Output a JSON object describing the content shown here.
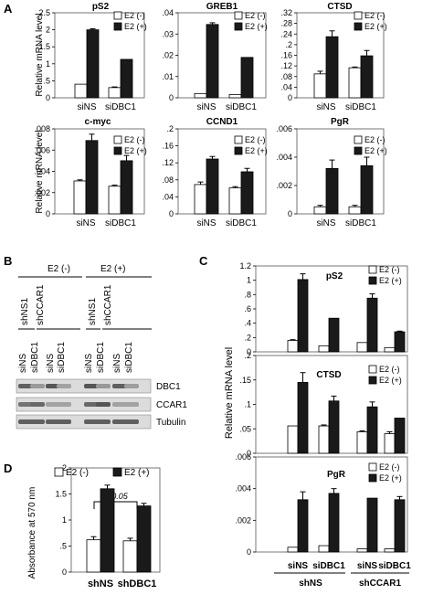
{
  "panel_letters": {
    "A": "A",
    "B": "B",
    "C": "C",
    "D": "D"
  },
  "legend": {
    "minus": "E2 (-)",
    "plus": "E2 (+)"
  },
  "panel_a": {
    "ylabel": "Relative mRNA level"
  },
  "panel_b": {
    "groups": [
      "E2 (-)",
      "E2 (+)"
    ],
    "sh_labels": [
      "shNS1",
      "shCCAR1",
      "shNS1",
      "shCCAR1"
    ],
    "si_labels": [
      "siNS",
      "siDBC1",
      "siNS",
      "siDBC1",
      "siNS",
      "siDBC1",
      "siNS",
      "siDBC1"
    ],
    "blots": [
      "DBC1",
      "CCAR1",
      "Tubulin"
    ]
  },
  "panel_c": {
    "ylabel": "Relative mRNA level",
    "si_labels": [
      "siNS",
      "siDBC1",
      "siNS",
      "siDBC1"
    ],
    "sh_labels": [
      "shNS",
      "shCCAR1"
    ]
  },
  "panel_d": {
    "ylabel": "Absorbance at 570 nm",
    "pvalue": "p<0.05"
  },
  "colors": {
    "minus": "#ffffff",
    "plus": "#1a1a1a",
    "stroke": "#000000"
  },
  "chart_data": [
    {
      "type": "bar",
      "panel": "A",
      "title": "pS2",
      "categories": [
        "siNS",
        "siDBC1"
      ],
      "series": [
        {
          "name": "E2 (-)",
          "values": [
            0.4,
            0.3
          ],
          "errors": [
            0.0,
            0.02
          ]
        },
        {
          "name": "E2 (+)",
          "values": [
            2.0,
            1.13
          ],
          "errors": [
            0.03,
            0.0
          ]
        }
      ],
      "ylim": [
        0,
        2.5
      ],
      "yticks": [
        0,
        0.5,
        1,
        1.5,
        2,
        2.5
      ],
      "ylabel": "Relative mRNA level"
    },
    {
      "type": "bar",
      "panel": "A",
      "title": "GREB1",
      "categories": [
        "siNS",
        "siDBC1"
      ],
      "series": [
        {
          "name": "E2 (-)",
          "values": [
            0.002,
            0.0015
          ],
          "errors": [
            0.0,
            0.0
          ]
        },
        {
          "name": "E2 (+)",
          "values": [
            0.0345,
            0.019
          ],
          "errors": [
            0.0008,
            0.0
          ]
        }
      ],
      "ylim": [
        0,
        0.04
      ],
      "yticks": [
        0,
        0.01,
        0.02,
        0.03,
        0.04
      ]
    },
    {
      "type": "bar",
      "panel": "A",
      "title": "CTSD",
      "categories": [
        "siNS",
        "siDBC1"
      ],
      "series": [
        {
          "name": "E2 (-)",
          "values": [
            0.09,
            0.113
          ],
          "errors": [
            0.01,
            0.003
          ]
        },
        {
          "name": "E2 (+)",
          "values": [
            0.23,
            0.158
          ],
          "errors": [
            0.022,
            0.02
          ]
        }
      ],
      "ylim": [
        0,
        0.32
      ],
      "yticks": [
        0,
        0.04,
        0.08,
        0.12,
        0.16,
        0.2,
        0.24,
        0.28,
        0.32
      ]
    },
    {
      "type": "bar",
      "panel": "A",
      "title": "c-myc",
      "categories": [
        "siNS",
        "siDBC1"
      ],
      "series": [
        {
          "name": "E2 (-)",
          "values": [
            0.0031,
            0.0026
          ],
          "errors": [
            0.0001,
            0.0001
          ]
        },
        {
          "name": "E2 (+)",
          "values": [
            0.0069,
            0.005
          ],
          "errors": [
            0.0006,
            0.0005
          ]
        }
      ],
      "ylim": [
        0,
        0.008
      ],
      "yticks": [
        0,
        0.002,
        0.004,
        0.006,
        0.008
      ],
      "ylabel": "Relative mRNA level"
    },
    {
      "type": "bar",
      "panel": "A",
      "title": "CCND1",
      "categories": [
        "siNS",
        "siDBC1"
      ],
      "series": [
        {
          "name": "E2 (-)",
          "values": [
            0.069,
            0.061
          ],
          "errors": [
            0.006,
            0.003
          ]
        },
        {
          "name": "E2 (+)",
          "values": [
            0.129,
            0.099
          ],
          "errors": [
            0.006,
            0.008
          ]
        }
      ],
      "ylim": [
        0,
        0.2
      ],
      "yticks": [
        0,
        0.04,
        0.08,
        0.12,
        0.16,
        0.2
      ]
    },
    {
      "type": "bar",
      "panel": "A",
      "title": "PgR",
      "categories": [
        "siNS",
        "siDBC1"
      ],
      "series": [
        {
          "name": "E2 (-)",
          "values": [
            0.0005,
            0.0005
          ],
          "errors": [
            0.0001,
            0.0001
          ]
        },
        {
          "name": "E2 (+)",
          "values": [
            0.0032,
            0.0034
          ],
          "errors": [
            0.0006,
            0.0006
          ]
        }
      ],
      "ylim": [
        0,
        0.006
      ],
      "yticks": [
        0,
        0.002,
        0.004,
        0.006
      ]
    },
    {
      "type": "bar",
      "panel": "C",
      "title": "pS2",
      "categories": [
        "siNS",
        "siDBC1",
        "siNS",
        "siDBC1"
      ],
      "series": [
        {
          "name": "E2 (-)",
          "values": [
            0.16,
            0.085,
            0.13,
            0.06
          ],
          "errors": [
            0.01,
            0.0,
            0.0,
            0.0
          ]
        },
        {
          "name": "E2 (+)",
          "values": [
            1.01,
            0.47,
            0.75,
            0.28
          ],
          "errors": [
            0.08,
            0.0,
            0.06,
            0.01
          ]
        }
      ],
      "ylim": [
        0,
        1.2
      ],
      "yticks": [
        0,
        0.2,
        0.4,
        0.6,
        0.8,
        1,
        1.2
      ]
    },
    {
      "type": "bar",
      "panel": "C",
      "title": "CTSD",
      "categories": [
        "siNS",
        "siDBC1",
        "siNS",
        "siDBC1"
      ],
      "series": [
        {
          "name": "E2 (-)",
          "values": [
            0.056,
            0.056,
            0.044,
            0.04
          ],
          "errors": [
            0.0,
            0.002,
            0.002,
            0.004
          ]
        },
        {
          "name": "E2 (+)",
          "values": [
            0.145,
            0.107,
            0.095,
            0.072
          ],
          "errors": [
            0.02,
            0.01,
            0.01,
            0.0
          ]
        }
      ],
      "ylim": [
        0,
        0.2
      ],
      "yticks": [
        0,
        0.05,
        0.1,
        0.15,
        0.2
      ]
    },
    {
      "type": "bar",
      "panel": "C",
      "title": "PgR",
      "categories": [
        "siNS",
        "siDBC1",
        "siNS",
        "siDBC1"
      ],
      "series": [
        {
          "name": "E2 (-)",
          "values": [
            0.0003,
            0.0004,
            0.0002,
            0.0002
          ],
          "errors": [
            0.0,
            0.0,
            0.0,
            0.0
          ]
        },
        {
          "name": "E2 (+)",
          "values": [
            0.0033,
            0.0037,
            0.0034,
            0.0033
          ],
          "errors": [
            0.0005,
            0.0003,
            0.0,
            0.0002
          ]
        }
      ],
      "ylim": [
        0,
        0.006
      ],
      "yticks": [
        0,
        0.002,
        0.004,
        0.006
      ]
    },
    {
      "type": "bar",
      "panel": "D",
      "title": "",
      "categories": [
        "shNS",
        "shDBC1"
      ],
      "series": [
        {
          "name": "E2 (-)",
          "values": [
            0.62,
            0.6
          ],
          "errors": [
            0.06,
            0.05
          ]
        },
        {
          "name": "E2 (+)",
          "values": [
            1.6,
            1.27
          ],
          "errors": [
            0.07,
            0.05
          ]
        }
      ],
      "ylim": [
        0,
        2
      ],
      "yticks": [
        0,
        0.5,
        1,
        1.5,
        2
      ],
      "ylabel": "Absorbance at 570 nm"
    }
  ]
}
